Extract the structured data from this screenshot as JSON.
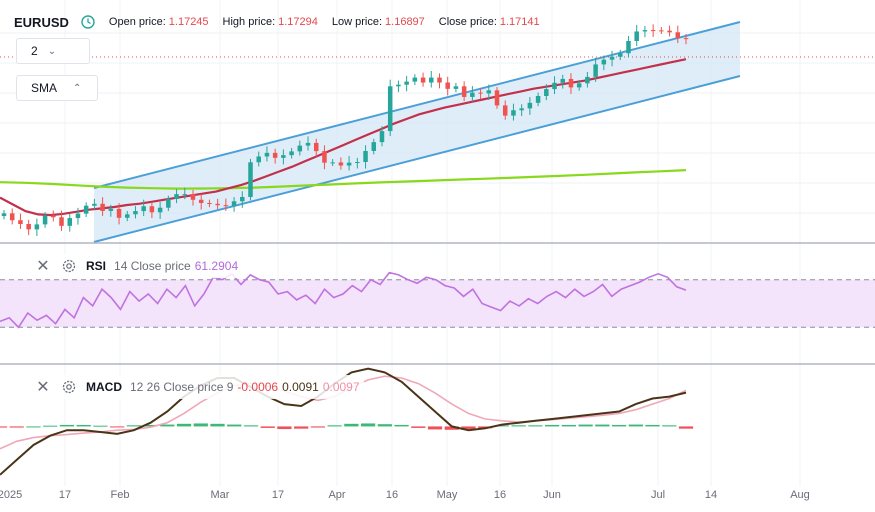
{
  "header": {
    "symbol": "EURUSD",
    "open_label": "Open price:",
    "open_value": "1.17245",
    "high_label": "High price:",
    "high_value": "1.17294",
    "low_label": "Low price:",
    "low_value": "1.16897",
    "close_label": "Close price:",
    "close_value": "1.17141"
  },
  "controls": {
    "interval_value": "2",
    "indicator_label": "SMA"
  },
  "rsi_header": {
    "name": "RSI",
    "params": "14 Close price",
    "value": "61.2904"
  },
  "macd_header": {
    "name": "MACD",
    "params": "12 26 Close price 9",
    "histogram": "-0.0006",
    "macd": "0.0091",
    "signal": "0.0097"
  },
  "xaxis": {
    "labels": [
      "2025",
      "17",
      "Feb",
      "Mar",
      "17",
      "Apr",
      "16",
      "May",
      "16",
      "Jun",
      "Jul",
      "14",
      "Aug"
    ]
  },
  "colors": {
    "bull": "#26a69a",
    "bear": "#ef5350",
    "channel_line": "#4a9fd8",
    "channel_fill": "#d4e7f7",
    "sma_fast": "#c2304a",
    "sma_slow": "#88d81c",
    "rsi": "#c073e0",
    "rsi_band": "#f3e3fb",
    "macd": "#4a3418",
    "signal": "#f0a8b8",
    "hist_pos": "#3cb878",
    "hist_neg": "#f0505a"
  },
  "chart_data": [
    {
      "type": "candlestick",
      "title": "EURUSD",
      "pattern": "rising channel",
      "price_range": [
        1.02,
        1.2
      ],
      "close_series": [
        1.0413,
        1.0362,
        1.0334,
        1.0294,
        1.0331,
        1.0397,
        1.0384,
        1.032,
        1.0378,
        1.0411,
        1.047,
        1.0484,
        1.0431,
        1.0446,
        1.038,
        1.0406,
        1.043,
        1.0466,
        1.0421,
        1.0455,
        1.052,
        1.0556,
        1.0556,
        1.0514,
        1.049,
        1.0484,
        1.0474,
        1.0468,
        1.0503,
        1.0535,
        1.0793,
        1.0836,
        1.0863,
        1.0826,
        1.0846,
        1.0874,
        1.0917,
        1.0937,
        1.0876,
        1.079,
        1.0792,
        1.0769,
        1.079,
        1.0795,
        1.0877,
        1.0943,
        1.1025,
        1.1358,
        1.137,
        1.1393,
        1.1423,
        1.1386,
        1.1423,
        1.1386,
        1.1339,
        1.1358,
        1.1279,
        1.1311,
        1.1305,
        1.1328,
        1.1216,
        1.114,
        1.118,
        1.1194,
        1.1235,
        1.1286,
        1.1337,
        1.1384,
        1.1413,
        1.135,
        1.138,
        1.1428,
        1.1521,
        1.1556,
        1.1578,
        1.1604,
        1.1695,
        1.1766,
        1.1776,
        1.1774,
        1.1772,
        1.176,
        1.1716,
        1.1714
      ],
      "sma_fast_label": "SMA",
      "sma_fast": [
        1.053,
        1.048,
        1.043,
        1.0405,
        1.04,
        1.041,
        1.0425,
        1.044,
        1.045,
        1.046,
        1.0475,
        1.0485,
        1.05,
        1.0515,
        1.053,
        1.0545,
        1.056,
        1.0575,
        1.06,
        1.0625,
        1.0655,
        1.069,
        1.0725,
        1.076,
        1.08,
        1.084,
        1.088,
        1.092,
        1.096,
        1.1,
        1.104,
        1.108,
        1.1115,
        1.115,
        1.1175,
        1.12,
        1.122,
        1.124,
        1.126,
        1.128,
        1.13,
        1.132,
        1.134,
        1.1355,
        1.137,
        1.1385,
        1.14,
        1.142,
        1.144,
        1.146,
        1.148,
        1.15,
        1.152,
        1.154,
        1.156
      ],
      "sma_slow": [
        1.0645,
        1.064,
        1.0632,
        1.0622,
        1.0612,
        1.0605,
        1.06,
        1.0597,
        1.0598,
        1.06,
        1.0605,
        1.0612,
        1.062,
        1.0628,
        1.0636,
        1.0643,
        1.065,
        1.0657,
        1.0664,
        1.067,
        1.0677,
        1.0684,
        1.0692,
        1.07,
        1.0709,
        1.0718,
        1.0726,
        1.0735
      ]
    },
    {
      "type": "line",
      "title": "RSI",
      "ylim": [
        0,
        100
      ],
      "levels": [
        70,
        30
      ],
      "series": [
        {
          "name": "RSI",
          "values": [
            35,
            38,
            30,
            42,
            36,
            40,
            33,
            45,
            38,
            55,
            48,
            62,
            55,
            45,
            60,
            52,
            58,
            50,
            62,
            55,
            65,
            48,
            58,
            72,
            70,
            75,
            66,
            74,
            70,
            68,
            58,
            60,
            53,
            57,
            50,
            62,
            55,
            58,
            65,
            60,
            70,
            66,
            76,
            74,
            70,
            67,
            72,
            70,
            65,
            63,
            56,
            62,
            50,
            47,
            44,
            52,
            48,
            54,
            50,
            56,
            60,
            55,
            62,
            56,
            60,
            66,
            56,
            62,
            65,
            68,
            72,
            75,
            72,
            64,
            61.29
          ]
        }
      ]
    },
    {
      "type": "bar+line",
      "title": "MACD",
      "macd": [
        -0.013,
        -0.009,
        -0.005,
        -0.0025,
        -0.001,
        -0.001,
        -0.0015,
        -0.002,
        -0.001,
        0.001,
        0.004,
        0.008,
        0.011,
        0.013,
        0.013,
        0.0105,
        0.008,
        0.006,
        0.0055,
        0.008,
        0.0115,
        0.0145,
        0.0155,
        0.0145,
        0.012,
        0.008,
        0.004,
        0.0,
        -0.001,
        -0.0005,
        0.0005,
        0.001,
        0.0015,
        0.002,
        0.0025,
        0.003,
        0.0035,
        0.004,
        0.006,
        0.0075,
        0.008,
        0.0091
      ],
      "signal": [
        -0.006,
        -0.004,
        -0.003,
        -0.0025,
        -0.0022,
        -0.0018,
        -0.0015,
        -0.001,
        -0.0008,
        -0.0002,
        0.001,
        0.0035,
        0.0065,
        0.009,
        0.011,
        0.0115,
        0.0108,
        0.0095,
        0.008,
        0.007,
        0.008,
        0.0105,
        0.0125,
        0.0135,
        0.013,
        0.0115,
        0.009,
        0.006,
        0.0035,
        0.002,
        0.0015,
        0.0012,
        0.0015,
        0.0018,
        0.0022,
        0.0026,
        0.003,
        0.0035,
        0.0045,
        0.006,
        0.0075,
        0.0097
      ],
      "histogram": [
        -0.0003,
        -0.0003,
        0.0,
        0.0002,
        0.0004,
        0.0004,
        0.0002,
        -0.0002,
        0.0003,
        0.0004,
        0.0005,
        0.0007,
        0.0008,
        0.0007,
        0.0005,
        0.0003,
        -0.0004,
        -0.0007,
        -0.0006,
        -0.0003,
        0.0003,
        0.0007,
        0.0008,
        0.0006,
        0.0004,
        -0.0004,
        -0.0008,
        -0.0009,
        -0.0007,
        -0.0005,
        0.0003,
        0.0003,
        0.0003,
        0.0004,
        0.0004,
        0.0005,
        0.0005,
        0.0004,
        0.0005,
        0.0004,
        0.0003,
        -0.0006
      ]
    }
  ]
}
